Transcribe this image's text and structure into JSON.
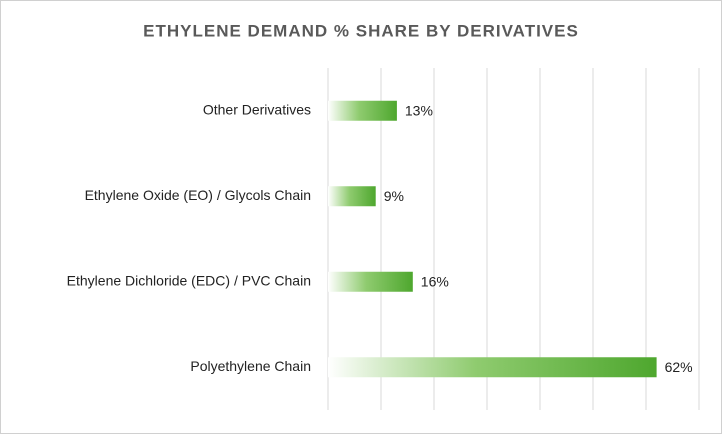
{
  "chart_data": {
    "type": "bar",
    "orientation": "horizontal",
    "title": "ETHYLENE DEMAND % SHARE BY DERIVATIVES",
    "categories": [
      "Other Derivatives",
      "Ethylene Oxide (EO) / Glycols Chain",
      "Ethylene Dichloride (EDC) / PVC Chain",
      "Polyethylene Chain"
    ],
    "values": [
      13,
      9,
      16,
      62
    ],
    "value_labels": [
      "13%",
      "9%",
      "16%",
      "62%"
    ],
    "color": "#4ea72e",
    "xlim": [
      0,
      70
    ],
    "xticks": [
      0,
      10,
      20,
      30,
      40,
      50,
      60,
      70
    ],
    "grid": true
  }
}
